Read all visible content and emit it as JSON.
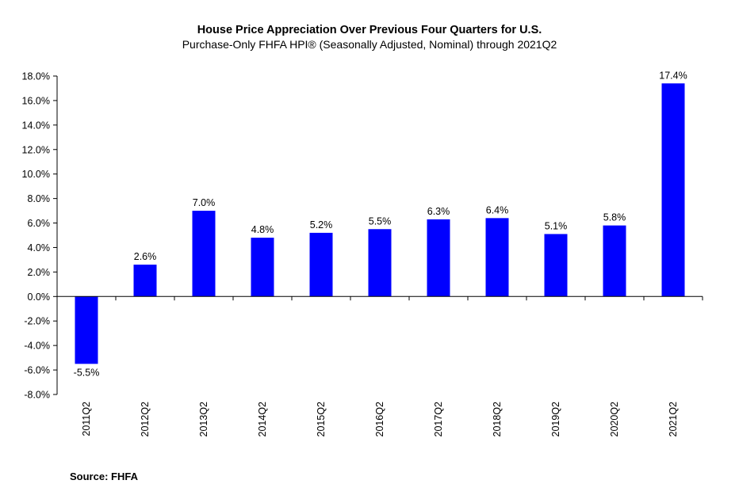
{
  "chart_data": {
    "type": "bar",
    "title": "House Price Appreciation Over Previous Four Quarters for U.S.",
    "subtitle": "Purchase-Only FHFA HPI® (Seasonally Adjusted, Nominal) through 2021Q2",
    "categories": [
      "2011Q2",
      "2012Q2",
      "2013Q2",
      "2014Q2",
      "2015Q2",
      "2016Q2",
      "2017Q2",
      "2018Q2",
      "2019Q2",
      "2020Q2",
      "2021Q2"
    ],
    "values": [
      -5.5,
      2.6,
      7.0,
      4.8,
      5.2,
      5.5,
      6.3,
      6.4,
      5.1,
      5.8,
      17.4
    ],
    "data_labels": [
      "-5.5%",
      "2.6%",
      "7.0%",
      "4.8%",
      "5.2%",
      "5.5%",
      "6.3%",
      "6.4%",
      "5.1%",
      "5.8%",
      "17.4%"
    ],
    "y_ticks": [
      "-8.0%",
      "-6.0%",
      "-4.0%",
      "-2.0%",
      "0.0%",
      "2.0%",
      "4.0%",
      "6.0%",
      "8.0%",
      "10.0%",
      "12.0%",
      "14.0%",
      "16.0%",
      "18.0%"
    ],
    "y_tick_values": [
      -8,
      -6,
      -4,
      -2,
      0,
      2,
      4,
      6,
      8,
      10,
      12,
      14,
      16,
      18
    ],
    "ylim": [
      -8,
      18
    ],
    "xlabel": "",
    "ylabel": "",
    "grid": false,
    "bar_color": "#0000ff"
  },
  "source_text": "Source:  FHFA"
}
